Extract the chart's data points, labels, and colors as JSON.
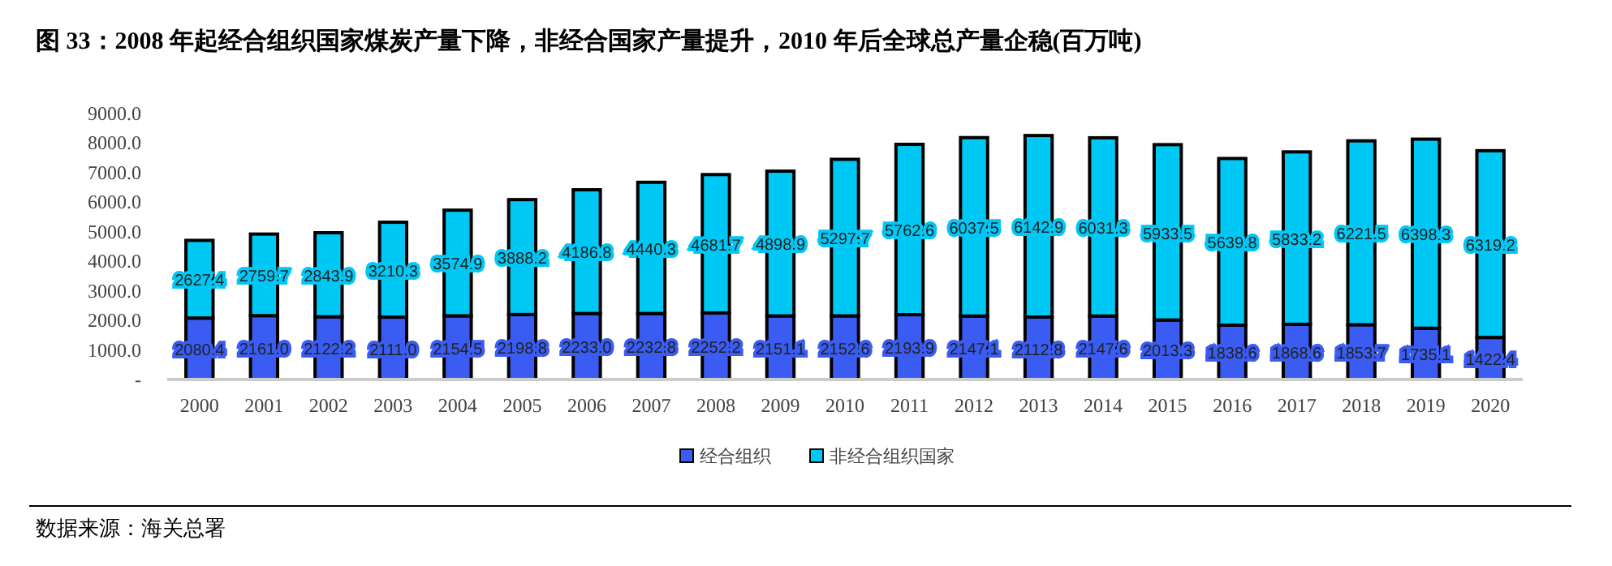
{
  "chart_data": {
    "type": "bar",
    "title": "图 33：2008 年起经合组织国家煤炭产量下降，非经合国家产量提升，2010 年后全球总产量企稳(百万吨)",
    "categories": [
      "2000",
      "2001",
      "2002",
      "2003",
      "2004",
      "2005",
      "2006",
      "2007",
      "2008",
      "2009",
      "2010",
      "2011",
      "2012",
      "2013",
      "2014",
      "2015",
      "2016",
      "2017",
      "2018",
      "2019",
      "2020"
    ],
    "series": [
      {
        "name": "经合组织",
        "color": "#3a5cf2",
        "values": [
          2080.4,
          2161,
          2122.2,
          2111,
          2154.5,
          2198.8,
          2233,
          2232.8,
          2252.2,
          2151.1,
          2152.6,
          2193.9,
          2147.1,
          2112.8,
          2147.6,
          2013.3,
          1838.6,
          1868.6,
          1853.7,
          1735.1,
          1422.4
        ],
        "value_labels": [
          "2080.4",
          "2161.0",
          "2122.2",
          "2111.0",
          "2154.5",
          "2198.8",
          "2233.0",
          "2232.8",
          "2252.2",
          "2151.1",
          "2152.6",
          "2193.9",
          "2147.1",
          "2112.8",
          "2147.6",
          "2013.3",
          "1838.6",
          "1868.6",
          "1853.7",
          "1735.1",
          "1422.4"
        ]
      },
      {
        "name": "非经合组织国家",
        "color": "#00c8f5",
        "values": [
          2627.4,
          2759.7,
          2843.9,
          3210.3,
          3574.9,
          3888.2,
          4186.8,
          4440.3,
          4681.7,
          4898.9,
          5297.7,
          5762.6,
          6037.5,
          6142.9,
          6031.3,
          5933.5,
          5639.8,
          5833.2,
          6221.5,
          6398.3,
          6319.2
        ],
        "value_labels": [
          "2627.4",
          "2759.7",
          "2843.9",
          "3210.3",
          "3574.9",
          "3888.2",
          "4186.8",
          "4440.3",
          "4681.7",
          "4898.9",
          "5297.7",
          "5762.6",
          "6037.5",
          "6142.9",
          "6031.3",
          "5933.5",
          "5639.8",
          "5833.2",
          "6221.5",
          "6398.3",
          "6319.2"
        ]
      }
    ],
    "stacked": true,
    "ylim": [
      0,
      9000
    ],
    "yticks": [
      {
        "value": 0,
        "label": "-"
      },
      {
        "value": 1000,
        "label": "1000.0"
      },
      {
        "value": 2000,
        "label": "2000.0"
      },
      {
        "value": 3000,
        "label": "3000.0"
      },
      {
        "value": 4000,
        "label": "4000.0"
      },
      {
        "value": 5000,
        "label": "5000.0"
      },
      {
        "value": 6000,
        "label": "6000.0"
      },
      {
        "value": 7000,
        "label": "7000.0"
      },
      {
        "value": 8000,
        "label": "8000.0"
      },
      {
        "value": 9000,
        "label": "9000.0"
      }
    ],
    "grid": false,
    "legend": "bottom",
    "annotations": [
      "数据来源：海关总署"
    ]
  }
}
